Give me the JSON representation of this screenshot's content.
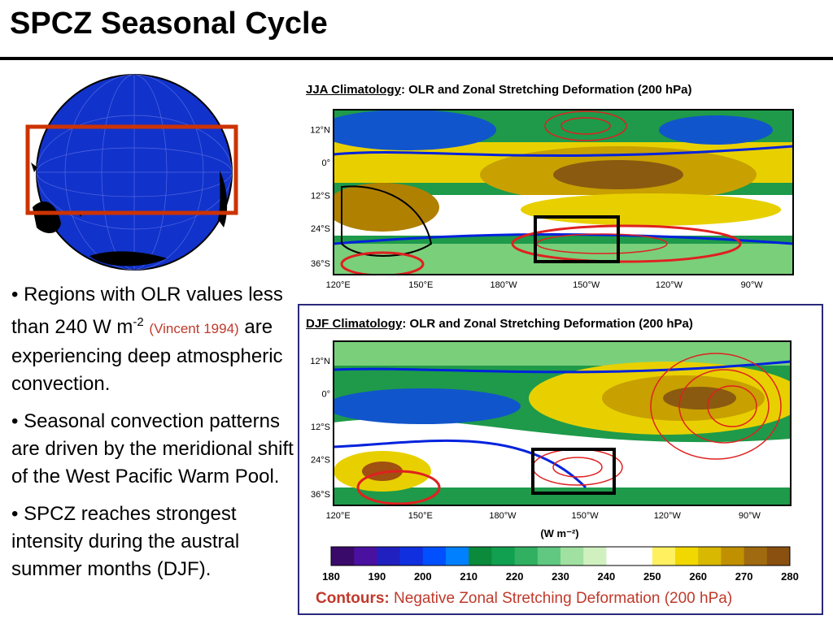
{
  "header": {
    "title": "SPCZ Seasonal Cycle"
  },
  "bullets": [
    {
      "text": "Regions with OLR values less than 240 W m",
      "superscript": "-2",
      "citation": "(Vincent 1994)",
      "text_after": "are experiencing deep atmospheric convection."
    },
    {
      "text": "Seasonal convection patterns are driven by the meridional shift of the West Pacific Warm Pool."
    },
    {
      "text": "SPCZ reaches strongest intensity during the austral summer months (DJF)."
    }
  ],
  "maps": [
    {
      "label": "JJA Climatology",
      "caption": ":  OLR and Zonal Stretching Deformation (200 hPa)"
    },
    {
      "label": "DJF Climatology",
      "caption": ":  OLR and Zonal Stretching Deformation (200 hPa)"
    }
  ],
  "latitudes": [
    "12°N",
    "0°",
    "12°S",
    "24°S",
    "36°S"
  ],
  "longitudes": [
    "120°E",
    "150°E",
    "180°W",
    "150°W",
    "120°W",
    "90°W"
  ],
  "colorbar": {
    "unit": "(W m⁻²)",
    "ticks": [
      "180",
      "190",
      "200",
      "210",
      "220",
      "230",
      "240",
      "250",
      "260",
      "270",
      "280"
    ]
  },
  "contours": {
    "label": "Contours:",
    "text": "Negative Zonal Stretching Deformation (200 hPa)"
  }
}
